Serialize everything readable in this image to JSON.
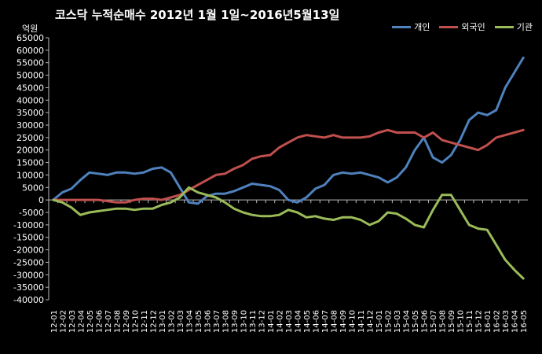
{
  "chart_data": {
    "type": "line",
    "title": "코스닥  누적순매수 2012년 1월 1일~2016년5월13일",
    "ylabel": "억원",
    "ylim": [
      -40000,
      65000
    ],
    "yticks": [
      65000,
      60000,
      55000,
      50000,
      45000,
      40000,
      35000,
      30000,
      25000,
      20000,
      15000,
      10000,
      5000,
      0,
      -5000,
      -10000,
      -15000,
      -20000,
      -25000,
      -30000,
      -35000,
      -40000
    ],
    "legend_position": "top-right",
    "grid": false,
    "categories": [
      "12-01",
      "12-02",
      "12-03",
      "12-04",
      "12-05",
      "12-06",
      "12-07",
      "12-08",
      "12-09",
      "12-10",
      "12-11",
      "12-12",
      "13-01",
      "13-02",
      "13-03",
      "13-04",
      "13-05",
      "13-06",
      "13-07",
      "13-08",
      "13-09",
      "13-10",
      "13-11",
      "13-12",
      "14-01",
      "14-02",
      "14-03",
      "14-04",
      "14-05",
      "14-06",
      "14-07",
      "14-08",
      "14-09",
      "14-10",
      "14-11",
      "14-12",
      "15-01",
      "15-02",
      "15-03",
      "15-04",
      "15-05",
      "15-06",
      "15-07",
      "15-08",
      "15-09",
      "15-10",
      "15-11",
      "15-12",
      "16-01",
      "16-02",
      "16-03",
      "16-04",
      "16-05"
    ],
    "series": [
      {
        "name": "개인",
        "color": "#4f81bd",
        "values": [
          0,
          3000,
          4500,
          8000,
          11000,
          10500,
          10000,
          11000,
          11000,
          10500,
          11000,
          12500,
          13000,
          11000,
          5000,
          -1000,
          -1500,
          1500,
          2500,
          2500,
          3500,
          5000,
          6500,
          6000,
          5500,
          4000,
          0,
          -1000,
          1000,
          4500,
          6000,
          10000,
          11000,
          10500,
          11000,
          10000,
          9000,
          7000,
          9000,
          13000,
          20000,
          25000,
          17000,
          15000,
          18000,
          24000,
          32000,
          35000,
          34000,
          36000,
          45000,
          51000,
          57000
        ]
      },
      {
        "name": "외국인",
        "color": "#c0504d",
        "values": [
          0,
          0,
          0,
          0,
          0,
          0,
          -500,
          -1000,
          -1000,
          0,
          500,
          500,
          0,
          1000,
          2000,
          4000,
          6000,
          8000,
          10000,
          10500,
          12500,
          14000,
          16500,
          17500,
          18000,
          21000,
          23000,
          25000,
          26000,
          25500,
          25000,
          26000,
          25000,
          25000,
          25000,
          25500,
          27000,
          28000,
          27000,
          27000,
          27000,
          25000,
          27000,
          24000,
          23000,
          22000,
          21000,
          20000,
          22000,
          25000,
          26000,
          27000,
          28000
        ]
      },
      {
        "name": "기관",
        "color": "#9bbb59",
        "values": [
          0,
          -1000,
          -3000,
          -6000,
          -5000,
          -4500,
          -4000,
          -3500,
          -3500,
          -4000,
          -3500,
          -3500,
          -2000,
          -1000,
          1000,
          5000,
          3000,
          2000,
          1000,
          -1000,
          -3500,
          -5000,
          -6000,
          -6500,
          -6500,
          -6000,
          -4000,
          -5000,
          -7000,
          -6500,
          -7500,
          -8000,
          -7000,
          -7000,
          -8000,
          -10000,
          -8500,
          -5000,
          -5500,
          -7500,
          -10000,
          -11000,
          -4000,
          2000,
          2000,
          -4000,
          -10000,
          -11500,
          -12000,
          -18000,
          -24000,
          -28000,
          -31500
        ]
      }
    ]
  }
}
